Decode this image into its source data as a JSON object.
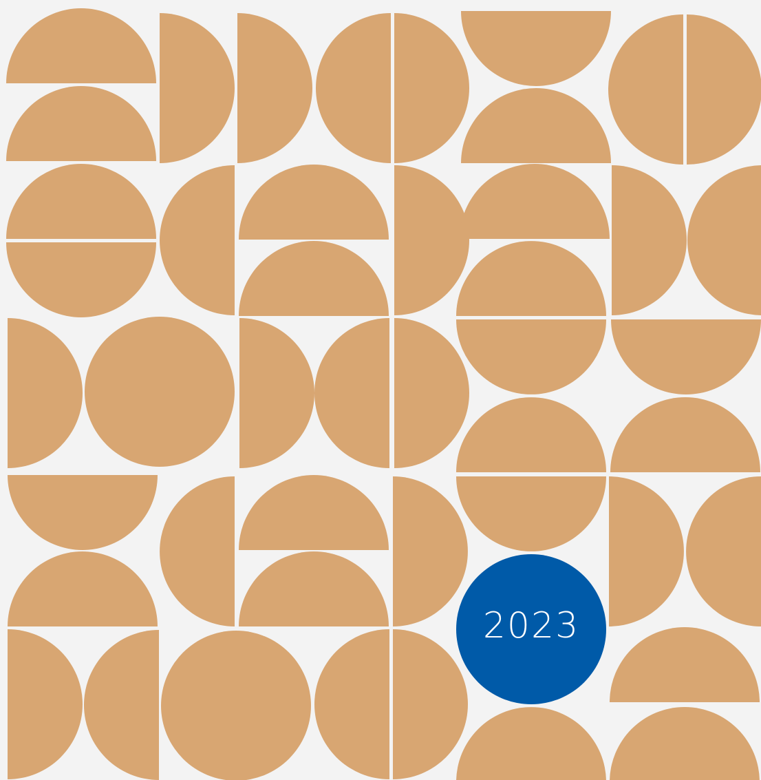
{
  "badge": {
    "year": "2023"
  },
  "colors": {
    "background": "#f3f3f3",
    "tile": "#d8a672",
    "badge": "#005aa8",
    "badge_text": "#ffffff"
  },
  "pattern": {
    "description_shapes": [
      "half-disc",
      "circle"
    ]
  }
}
